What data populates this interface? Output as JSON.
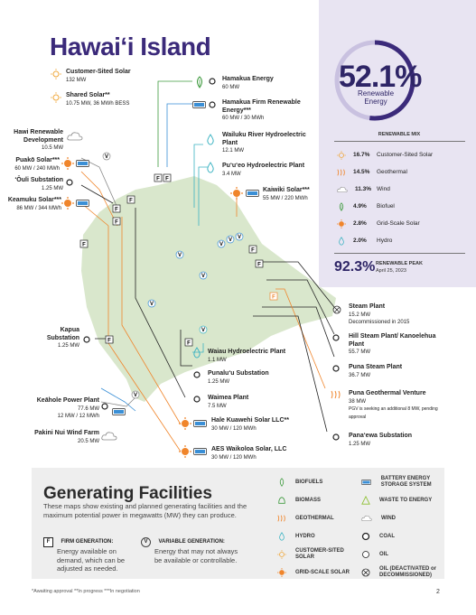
{
  "title": "Hawaiʻi Island",
  "page_number": "2",
  "renewable": {
    "percent": "52.1%",
    "label_line1": "Renewable",
    "label_line2": "Energy",
    "mix_title": "RENEWABLE MIX",
    "mix": [
      {
        "pct": "16.7%",
        "name": "Customer-Sited Solar",
        "icon": "sun-outline-icon"
      },
      {
        "pct": "14.5%",
        "name": "Geothermal",
        "icon": "geothermal-icon"
      },
      {
        "pct": "11.3%",
        "name": "Wind",
        "icon": "cloud-icon"
      },
      {
        "pct": "4.9%",
        "name": "Biofuel",
        "icon": "leaf-icon"
      },
      {
        "pct": "2.8%",
        "name": "Grid-Scale Solar",
        "icon": "sun-filled-icon"
      },
      {
        "pct": "2.0%",
        "name": "Hydro",
        "icon": "drop-icon"
      }
    ],
    "peak_pct": "92.3%",
    "peak_label": "RENEWABLE PEAK",
    "peak_date": "April 25, 2023"
  },
  "sites_left": {
    "customer_solar": {
      "name": "Customer-Sited Solar",
      "detail": "132 MW"
    },
    "shared_solar": {
      "name": "Shared Solar**",
      "detail": "10.75 MW, 36 MWh BESS"
    },
    "hawi": {
      "name": "Hawi Renewable Development",
      "detail": "10.5 MW"
    },
    "puako": {
      "name": "Puakō Solar***",
      "detail": "60 MW / 240 MWh"
    },
    "ouli": {
      "name": "ʻŌuli Substation",
      "detail": "1.25 MW"
    },
    "keamuku": {
      "name": "Keamuku Solar***",
      "detail": "86 MW / 344 MWh"
    },
    "kapua": {
      "name": "Kapua Substation",
      "detail": "1.25 MW"
    },
    "keahole": {
      "name": "Keāhole Power Plant",
      "detail": "77.6 MW",
      "detail2": "12 MW / 12 MWh"
    },
    "pakini": {
      "name": "Pakini Nui Wind Farm",
      "detail": "20.5 MW"
    }
  },
  "sites_right": {
    "hamakua": {
      "name": "Hamakua Energy",
      "detail": "60 MW"
    },
    "hamakua_firm": {
      "name": "Hamakua Firm Renewable Energy***",
      "detail": "60 MW / 30 MWh"
    },
    "wailuku": {
      "name": "Wailuku River Hydroelectric Plant",
      "detail": "12.1 MW"
    },
    "puueo": {
      "name": "Puʻuʻeo Hydroelectric Plant",
      "detail": "3.4 MW"
    },
    "kaiwiki": {
      "name": "Kaiwiki Solar***",
      "detail": "55 MW / 220 MWh"
    },
    "steam": {
      "name": "Steam Plant",
      "detail": "15.2 MW",
      "detail2": "Decommissioned in 2015"
    },
    "hill": {
      "name": "Hill Steam Plant/ Kanoelehua Plant",
      "detail": "55.7 MW"
    },
    "puna_steam": {
      "name": "Puna Steam Plant",
      "detail": "36.7 MW"
    },
    "puna_geo": {
      "name": "Puna Geothermal Venture",
      "detail": "38 MW",
      "detail2": "PGV is seeking an additional 8 MW, pending approval"
    },
    "panaewa": {
      "name": "Panaʻewa Substation",
      "detail": "1.25 MW"
    },
    "waiau": {
      "name": "Waiau Hydroelectric Plant",
      "detail": "1.1 MW"
    },
    "punaluu": {
      "name": "Punaluʻu Substation",
      "detail": "1.25 MW"
    },
    "waimea": {
      "name": "Waimea Plant",
      "detail": "7.5 MW"
    },
    "hale": {
      "name": "Hale Kuawehi Solar LLC**",
      "detail": "30 MW / 120 MWh"
    },
    "aes": {
      "name": "AES Waikoloa Solar, LLC",
      "detail": "30 MW / 120 MWh"
    }
  },
  "generating": {
    "title": "Generating Facilities",
    "desc": "These maps show existing and planned generating facilities and the maximum potential power in megawatts (MW) they can produce.",
    "firm_title": "FIRM GENERATION:",
    "firm_desc": "Energy available on demand, which can be adjusted as needed.",
    "variable_title": "VARIABLE GENERATION:",
    "variable_desc": "Energy that may not always be available or controllable.",
    "legend_col1": [
      "BIOFUELS",
      "BIOMASS",
      "GEOTHERMAL",
      "HYDRO",
      "CUSTOMER-SITED SOLAR",
      "GRID-SCALE SOLAR"
    ],
    "legend_col2": [
      "BATTERY ENERGY STORAGE SYSTEM",
      "WASTE TO ENERGY",
      "WIND",
      "COAL",
      "OIL",
      "OIL (DEACTIVATED or DECOMMISSIONED)"
    ]
  },
  "footnote": "*Awaiting approval    **In progress    ***In negotiation",
  "colors": {
    "purple": "#3b2a7a",
    "pane": "#e8e4f2",
    "island": "#d9e7cc",
    "orange": "#f0852b",
    "blue": "#3a8fd6",
    "green": "#3d9a3d",
    "teal": "#3bb3c2"
  }
}
